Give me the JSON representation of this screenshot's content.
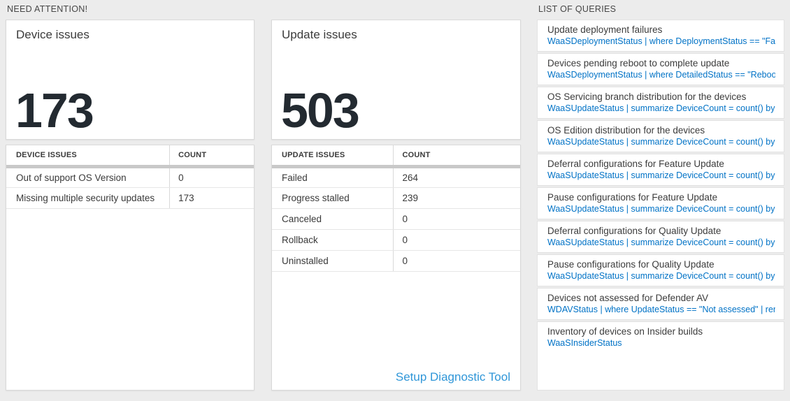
{
  "colors": {
    "page_background": "#ececec",
    "card_background": "#ffffff",
    "query_link_blue": "#0072c6",
    "setup_link_blue": "#2f96d8",
    "big_number_text": "#232a31",
    "header_bar_gray": "#c9c9c9"
  },
  "need_attention": {
    "header": "NEED ATTENTION!",
    "device_card": {
      "title": "Device issues",
      "value": "173"
    },
    "device_table": {
      "headers": {
        "label": "DEVICE ISSUES",
        "count": "COUNT"
      },
      "rows": [
        {
          "label": "Out of support OS Version",
          "count": "0"
        },
        {
          "label": "Missing multiple security updates",
          "count": "173"
        }
      ]
    },
    "update_card": {
      "title": "Update issues",
      "value": "503"
    },
    "update_table": {
      "headers": {
        "label": "UPDATE ISSUES",
        "count": "COUNT"
      },
      "rows": [
        {
          "label": "Failed",
          "count": "264"
        },
        {
          "label": "Progress stalled",
          "count": "239"
        },
        {
          "label": "Canceled",
          "count": "0"
        },
        {
          "label": "Rollback",
          "count": "0"
        },
        {
          "label": "Uninstalled",
          "count": "0"
        }
      ],
      "footer_link": "Setup Diagnostic Tool"
    }
  },
  "queries": {
    "header": "LIST OF QUERIES",
    "items": [
      {
        "title": "Update deployment failures",
        "query": "WaaSDeploymentStatus | where DeploymentStatus == \"Failed\" |..."
      },
      {
        "title": "Devices pending reboot to complete update",
        "query": "WaaSDeploymentStatus | where DetailedStatus == \"Reboot pend..."
      },
      {
        "title": "OS Servicing branch distribution for the devices",
        "query": "WaaSUpdateStatus | summarize DeviceCount = count() by OSSer..."
      },
      {
        "title": "OS Edition distribution for the devices",
        "query": "WaaSUpdateStatus | summarize DeviceCount = count() by OSEdit..."
      },
      {
        "title": "Deferral configurations for Feature Update",
        "query": "WaaSUpdateStatus | summarize DeviceCount = count() by Featur..."
      },
      {
        "title": "Pause configurations for Feature Update",
        "query": "WaaSUpdateStatus | summarize DeviceCount = count() by Featur..."
      },
      {
        "title": "Deferral configurations for Quality Update",
        "query": "WaaSUpdateStatus | summarize DeviceCount = count() by Qualit..."
      },
      {
        "title": "Pause configurations for Quality Update",
        "query": "WaaSUpdateStatus | summarize DeviceCount = count() by Qualit..."
      },
      {
        "title": "Devices not assessed for Defender AV",
        "query": "WDAVStatus | where UpdateStatus == \"Not assessed\" | render ta..."
      },
      {
        "title": "Inventory of devices on Insider builds",
        "query": "WaaSInsiderStatus"
      }
    ]
  }
}
